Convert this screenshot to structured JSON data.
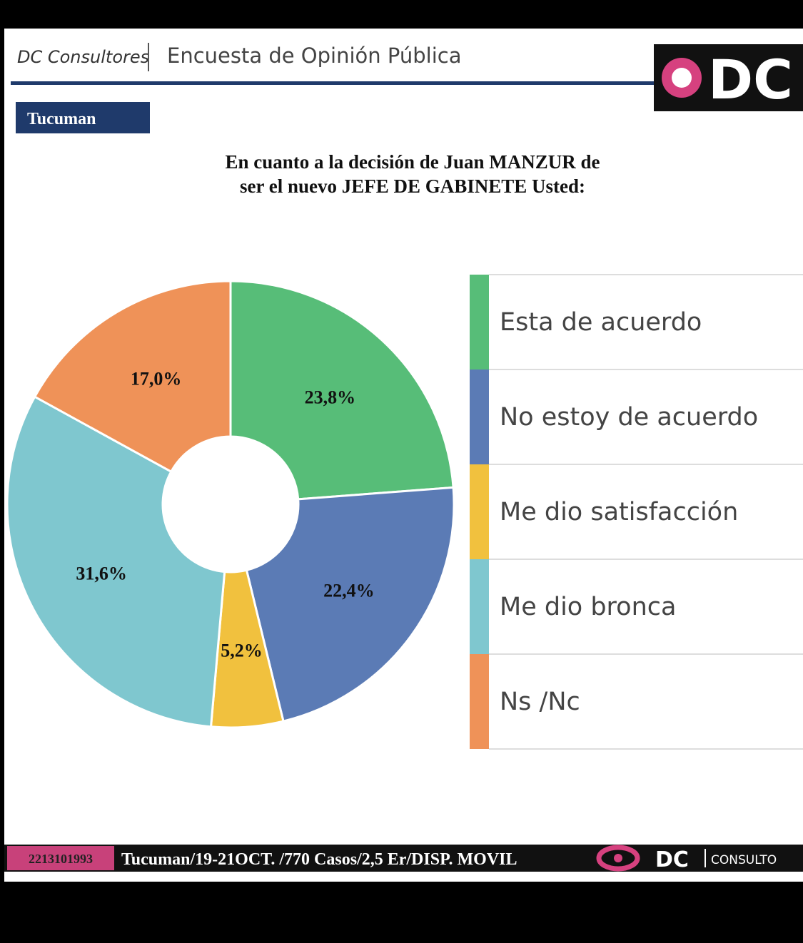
{
  "header": {
    "brand": "DC Consultores",
    "title": "Encuesta de Opinión Pública",
    "logo": "DC",
    "badge": "Tucuman"
  },
  "chart_data": {
    "type": "pie",
    "title": [
      "En cuanto a la decisión de Juan MANZUR de",
      "ser el nuevo JEFE DE GABINETE Usted:"
    ],
    "categories": [
      "Esta de acuerdo",
      "No estoy de acuerdo",
      "Me dio satisfacción",
      "Me dio bronca",
      "Ns /Nc"
    ],
    "values": [
      23.8,
      22.4,
      5.2,
      31.6,
      17.0
    ],
    "value_labels": [
      "23,8%",
      "22,4%",
      "5,2%",
      "31,6%",
      "17,0%"
    ],
    "colors": [
      "#57bd78",
      "#5b7bb5",
      "#f1c13e",
      "#7fc7cf",
      "#ef9258"
    ]
  },
  "footer": {
    "phone": "2213101993",
    "info": "Tucuman/19-21OCT. /770 Casos/2,5 Er/DISP. MOVIL",
    "logo": "DC",
    "brand": "CONSULTO"
  }
}
